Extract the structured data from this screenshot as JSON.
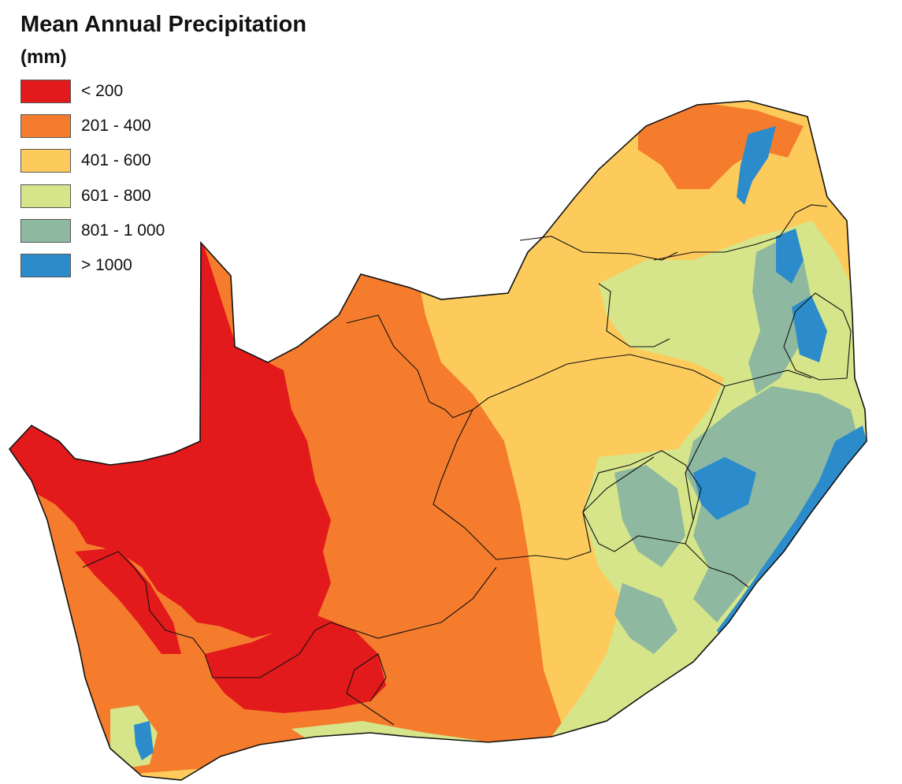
{
  "map": {
    "title": "Mean Annual Precipitation",
    "subtitle": "(mm)",
    "region": "South Africa",
    "legend": [
      {
        "label": "< 200",
        "color": "#E31A1C"
      },
      {
        "label": "201 - 400",
        "color": "#F47C2C"
      },
      {
        "label": "401 - 600",
        "color": "#FDCB5C"
      },
      {
        "label": "601 - 800",
        "color": "#D6E58A"
      },
      {
        "label": "801 - 1 000",
        "color": "#8EB9A0"
      },
      {
        "label": "> 1000",
        "color": "#2C8CCB"
      }
    ]
  }
}
